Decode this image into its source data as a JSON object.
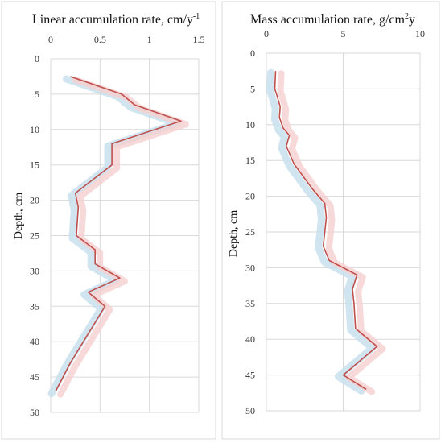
{
  "colors": {
    "series_line": "#c0504d",
    "band_blue": "#c9e1ef",
    "band_pink": "#f6cfcf",
    "grid": "#d9d9d9"
  },
  "chart_data": [
    {
      "type": "line",
      "title": "Linear accumulation rate, cm/y",
      "title_superscript": "-1",
      "xlabel": "",
      "ylabel": "Depth, cm",
      "xlim": [
        0,
        1.5
      ],
      "ylim": [
        0,
        50
      ],
      "y_inverted": true,
      "x_axis_position": "top",
      "x_ticks": [
        "0",
        "0.5",
        "1",
        "1.5"
      ],
      "y_ticks": [
        "0",
        "5",
        "10",
        "15",
        "20",
        "25",
        "30",
        "35",
        "40",
        "45",
        "50"
      ],
      "grid": true,
      "series": [
        {
          "x": [
            0.2,
            0.72,
            0.85,
            1.32,
            0.62,
            0.62,
            0.25,
            0.28,
            0.26,
            0.45,
            0.45,
            0.7,
            0.38,
            0.55,
            0.2,
            0.05
          ],
          "y": [
            2.5,
            5.0,
            6.5,
            8.8,
            12.0,
            15.0,
            19.0,
            21.0,
            25.0,
            27.0,
            29.0,
            31.0,
            33.0,
            35.0,
            43.0,
            47.0
          ]
        }
      ]
    },
    {
      "type": "line",
      "title": "Mass accumulation rate, g/cm",
      "title_superscript": "2",
      "title_suffix": "y",
      "xlabel": "",
      "ylabel": "Depth, cm",
      "xlim": [
        0,
        10
      ],
      "ylim": [
        0,
        50
      ],
      "y_inverted": true,
      "x_axis_position": "top",
      "x_ticks": [
        "0",
        "5",
        "10"
      ],
      "y_ticks": [
        "0",
        "5",
        "10",
        "15",
        "20",
        "25",
        "30",
        "35",
        "40",
        "45",
        "50"
      ],
      "grid": true,
      "series": [
        {
          "x": [
            0.6,
            0.55,
            0.7,
            0.9,
            0.85,
            1.1,
            1.5,
            1.3,
            1.8,
            3.0,
            3.8,
            3.9,
            3.7,
            4.1,
            5.9,
            5.6,
            5.7,
            5.8,
            7.2,
            5.0,
            6.5
          ],
          "y": [
            2.5,
            5.0,
            6.0,
            7.5,
            9.0,
            10.5,
            11.5,
            13.0,
            15.5,
            19.0,
            21.0,
            23.0,
            27.0,
            29.0,
            31.0,
            33.0,
            35.0,
            38.5,
            41.0,
            45.0,
            47.0
          ]
        }
      ]
    }
  ]
}
